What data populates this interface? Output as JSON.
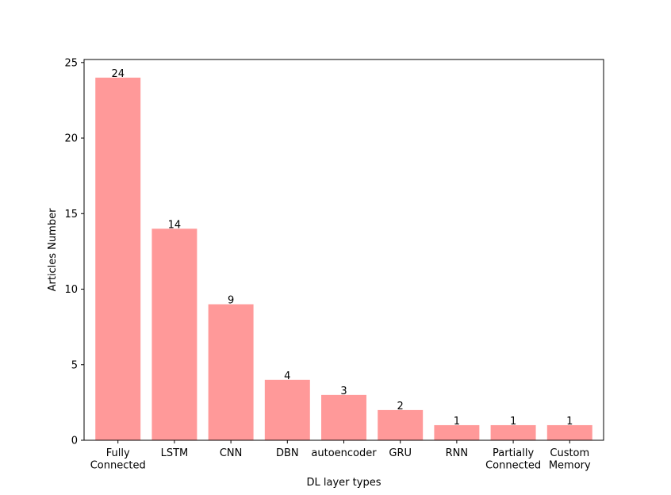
{
  "chart_data": {
    "type": "bar",
    "categories": [
      [
        "Fully",
        "Connected"
      ],
      [
        "LSTM"
      ],
      [
        "CNN"
      ],
      [
        "DBN"
      ],
      [
        "autoencoder"
      ],
      [
        "GRU"
      ],
      [
        "RNN"
      ],
      [
        "Partially",
        "Connected"
      ],
      [
        "Custom",
        "Memory"
      ]
    ],
    "values": [
      24,
      14,
      9,
      4,
      3,
      2,
      1,
      1,
      1
    ],
    "data_labels": [
      "24",
      "14",
      "9",
      "4",
      "3",
      "2",
      "1",
      "1",
      "1"
    ],
    "xlabel": "DL layer types",
    "ylabel": "Articles Number",
    "ylim": [
      0,
      25.2
    ],
    "yticks": [
      0,
      5,
      10,
      15,
      20,
      25
    ],
    "grid": false,
    "bar_color": "#ff9999"
  }
}
